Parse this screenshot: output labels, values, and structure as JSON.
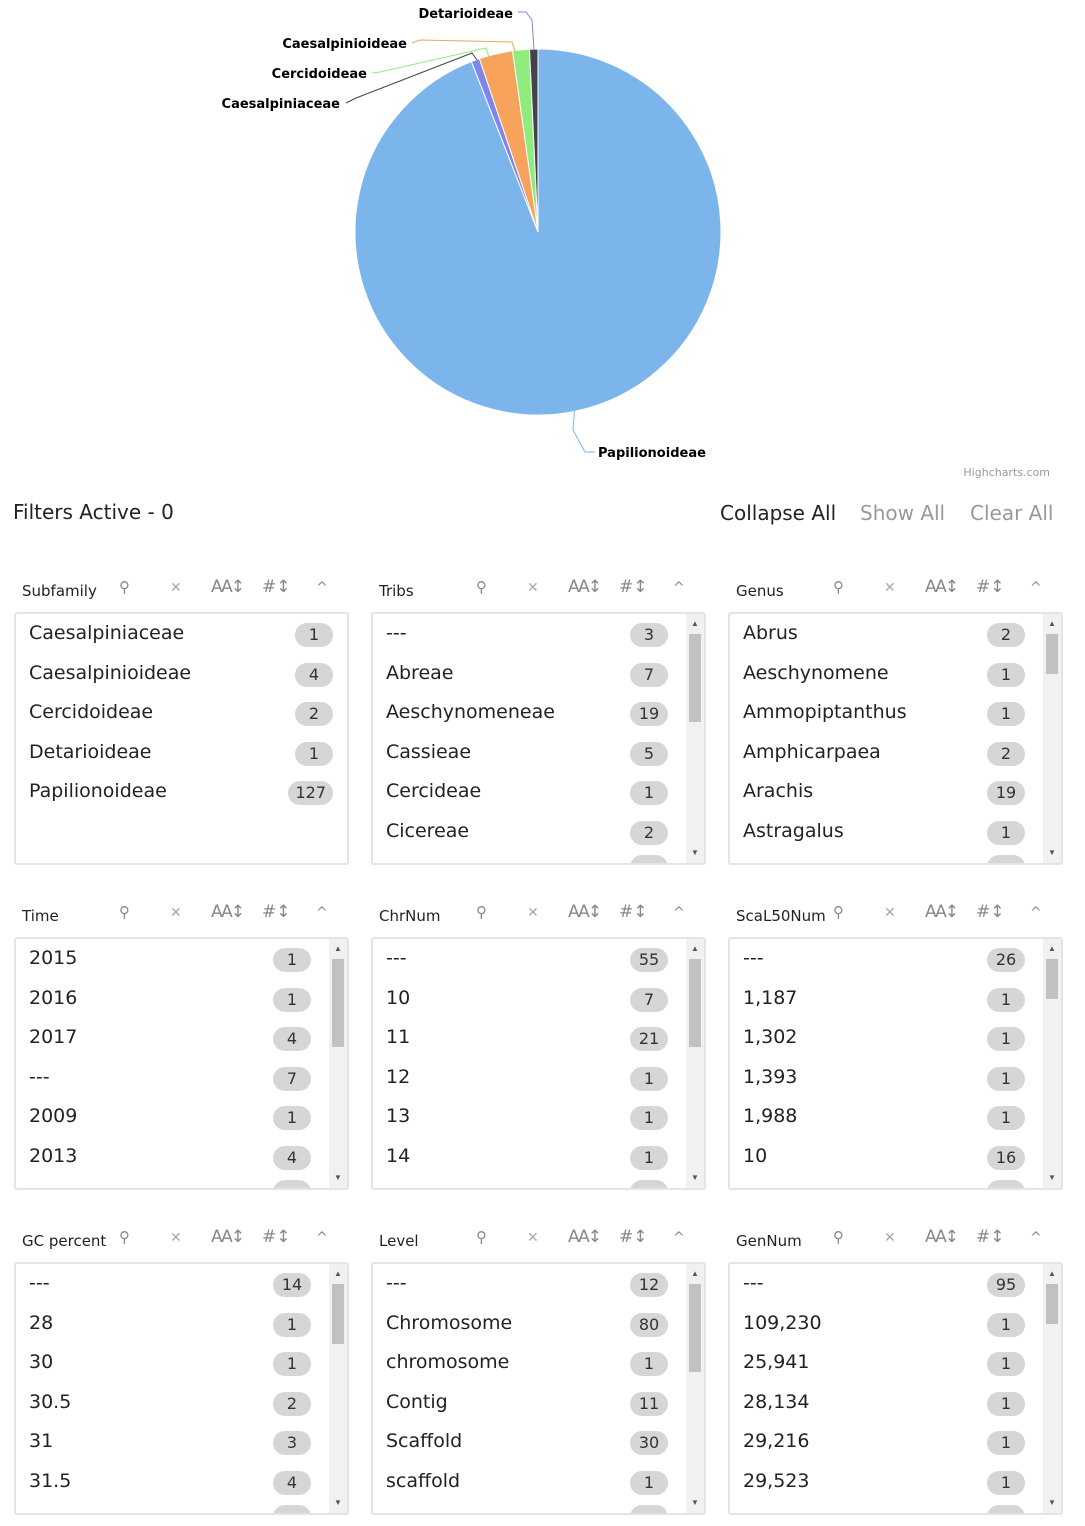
{
  "chart_data": {
    "type": "pie",
    "series": [
      {
        "name": "Papilionoideae",
        "value": 127,
        "color": "#7cb5ec"
      },
      {
        "name": "Detarioideae",
        "value": 1,
        "color": "#8085e9"
      },
      {
        "name": "Caesalpinioideae",
        "value": 4,
        "color": "#f7a35c"
      },
      {
        "name": "Cercidoideae",
        "value": 2,
        "color": "#90ed7d"
      },
      {
        "name": "Caesalpiniaceae",
        "value": 1,
        "color": "#434348"
      }
    ],
    "credits": "Highcharts.com"
  },
  "toolbar": {
    "filters_active": "Filters Active - 0",
    "collapse_all": "Collapse All",
    "show_all": "Show All",
    "clear_all": "Clear All"
  },
  "icons": {
    "search": "⚲",
    "close": "✕",
    "alpha_sort": "AA↕",
    "num_sort": "#↕",
    "collapse": "^"
  },
  "facets": [
    {
      "title": "Subfamily",
      "scroll": false,
      "items": [
        {
          "label": "Caesalpiniaceae",
          "count": "1"
        },
        {
          "label": "Caesalpinioideae",
          "count": "4"
        },
        {
          "label": "Cercidoideae",
          "count": "2"
        },
        {
          "label": "Detarioideae",
          "count": "1"
        },
        {
          "label": "Papilionoideae",
          "count": "127"
        }
      ]
    },
    {
      "title": "Tribs",
      "scroll": true,
      "items": [
        {
          "label": "---",
          "count": "3"
        },
        {
          "label": "Abreae",
          "count": "7"
        },
        {
          "label": "Aeschynomeneae",
          "count": "19"
        },
        {
          "label": "Cassieae",
          "count": "5"
        },
        {
          "label": "Cercideae",
          "count": "1"
        },
        {
          "label": "Cicereae",
          "count": "2"
        }
      ]
    },
    {
      "title": "Genus",
      "scroll": true,
      "items": [
        {
          "label": "Abrus",
          "count": "2"
        },
        {
          "label": "Aeschynomene",
          "count": "1"
        },
        {
          "label": "Ammopiptanthus",
          "count": "1"
        },
        {
          "label": "Amphicarpaea",
          "count": "2"
        },
        {
          "label": "Arachis",
          "count": "19"
        },
        {
          "label": "Astragalus",
          "count": "1"
        }
      ]
    },
    {
      "title": "Time",
      "scroll": true,
      "items": [
        {
          "label": " 2015",
          "count": "1"
        },
        {
          "label": " 2016",
          "count": "1"
        },
        {
          "label": " 2017",
          "count": "4"
        },
        {
          "label": "---",
          "count": "7"
        },
        {
          "label": "2009",
          "count": "1"
        },
        {
          "label": "2013",
          "count": "4"
        }
      ]
    },
    {
      "title": "ChrNum",
      "scroll": true,
      "items": [
        {
          "label": "---",
          "count": "55"
        },
        {
          "label": "10",
          "count": "7"
        },
        {
          "label": "11",
          "count": "21"
        },
        {
          "label": "12",
          "count": "1"
        },
        {
          "label": "13",
          "count": "1"
        },
        {
          "label": "14",
          "count": "1"
        }
      ]
    },
    {
      "title": "ScaL50Num",
      "scroll": true,
      "items": [
        {
          "label": "---",
          "count": "26"
        },
        {
          "label": "1,187",
          "count": "1"
        },
        {
          "label": "1,302",
          "count": "1"
        },
        {
          "label": "1,393",
          "count": "1"
        },
        {
          "label": "1,988",
          "count": "1"
        },
        {
          "label": "10",
          "count": "16"
        }
      ]
    },
    {
      "title": "GC percent",
      "scroll": true,
      "items": [
        {
          "label": "---",
          "count": "14"
        },
        {
          "label": "28",
          "count": "1"
        },
        {
          "label": "30",
          "count": "1"
        },
        {
          "label": "30.5",
          "count": "2"
        },
        {
          "label": "31",
          "count": "3"
        },
        {
          "label": "31.5",
          "count": "4"
        }
      ]
    },
    {
      "title": "Level",
      "scroll": false,
      "items": [
        {
          "label": "---",
          "count": "12"
        },
        {
          "label": "Chromosome",
          "count": "80"
        },
        {
          "label": "chromosome",
          "count": "1"
        },
        {
          "label": "Contig",
          "count": "11"
        },
        {
          "label": "Scaffold",
          "count": "30"
        },
        {
          "label": "scaffold",
          "count": "1"
        }
      ]
    },
    {
      "title": "GenNum",
      "scroll": true,
      "items": [
        {
          "label": "---",
          "count": "95"
        },
        {
          "label": "109,230",
          "count": "1"
        },
        {
          "label": "25,941",
          "count": "1"
        },
        {
          "label": "28,134",
          "count": "1"
        },
        {
          "label": "29,216",
          "count": "1"
        },
        {
          "label": "29,523",
          "count": "1"
        }
      ]
    }
  ]
}
